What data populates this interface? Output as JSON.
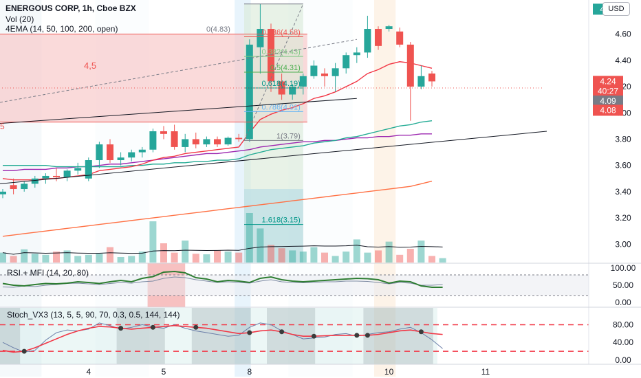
{
  "header": {
    "title": "ENERGOUS CORP, 1h, Cboe BZX",
    "vol_label": "Vol (20)",
    "ema_label": "4EMA (14, 50, 100, 200, open)",
    "currency": "USD"
  },
  "price_axis": {
    "ticks": [
      "4.60",
      "4.40",
      "4.20",
      "4.00",
      "3.80",
      "3.60",
      "3.40",
      "3.20",
      "3.00"
    ],
    "tick_values": [
      4.6,
      4.4,
      4.2,
      4.0,
      3.8,
      3.6,
      3.4,
      3.2,
      3.0
    ],
    "ylim": [
      2.86,
      4.86
    ],
    "labels": [
      {
        "text": "4.79",
        "value": 4.79,
        "color": "#26a69a"
      },
      {
        "text": "4.24",
        "value": 4.24,
        "color": "#ef5350"
      },
      {
        "text": "40:27",
        "value": 4.19,
        "color": "#ef5350"
      },
      {
        "text": "4.09",
        "value": 4.09,
        "color": "#787b86"
      },
      {
        "text": "4.08",
        "value": 4.08,
        "color": "#ef5350"
      }
    ]
  },
  "time_axis": {
    "labels": [
      {
        "text": "4",
        "index": 8
      },
      {
        "text": "5",
        "index": 15
      },
      {
        "text": "8",
        "index": 23
      },
      {
        "text": "10",
        "index": 36
      },
      {
        "text": "11",
        "index": 45
      }
    ]
  },
  "fib": {
    "top_label": "0(4.83)",
    "levels": [
      {
        "label": "0.236(4.58)",
        "value": 4.58,
        "color": "#ef5350"
      },
      {
        "label": "0.382(4.43)",
        "value": 4.43,
        "color": "#81c784"
      },
      {
        "label": "0.5(4.31)",
        "value": 4.31,
        "color": "#4caf50"
      },
      {
        "label": "0.618(4.19)",
        "value": 4.19,
        "color": "#009688"
      },
      {
        "label": "0.786(4.01)",
        "value": 4.01,
        "color": "#64b5f6"
      },
      {
        "label": "1(3.79)",
        "value": 3.79,
        "color": "#787b86"
      },
      {
        "label": "1.618(3.15)",
        "value": 3.15,
        "color": "#009688"
      }
    ]
  },
  "annotations": {
    "box_label": "4,5",
    "side_label": "5"
  },
  "rsi_panel": {
    "title": "RSI + MFI (14, 20, 80)",
    "ticks": [
      "100.00",
      "50.00",
      "0.00"
    ],
    "tick_values": [
      100,
      50,
      0
    ],
    "rsi": [
      55,
      50,
      48,
      52,
      55,
      54,
      56,
      60,
      58,
      55,
      60,
      64,
      60,
      70,
      75,
      88,
      90,
      86,
      72,
      68,
      60,
      64,
      62,
      58,
      70,
      74,
      66,
      62,
      60,
      62,
      64,
      66,
      68,
      70,
      69,
      66,
      56,
      62,
      60,
      48,
      44,
      44
    ],
    "mfi": [
      45,
      44,
      48,
      46,
      50,
      52,
      55,
      56,
      54,
      52,
      55,
      58,
      56,
      60,
      62,
      70,
      74,
      72,
      66,
      62,
      58,
      60,
      58,
      56,
      62,
      66,
      60,
      58,
      57,
      58,
      60,
      60,
      62,
      62,
      61,
      58,
      54,
      58,
      56,
      50,
      50,
      52
    ]
  },
  "stoch_panel": {
    "title": "Stoch_VX3 (13, 5, 5, 90, 70, 0.3, 0.5, 144, 144)",
    "ticks": [
      "80.00",
      "40.00",
      "0.00"
    ],
    "tick_values": [
      80,
      40,
      0
    ],
    "k": [
      22,
      18,
      20,
      28,
      38,
      48,
      58,
      66,
      72,
      76,
      75,
      72,
      70,
      72,
      74,
      76,
      78,
      76,
      74,
      72,
      68,
      64,
      60,
      62,
      66,
      68,
      64,
      58,
      54,
      54,
      55,
      56,
      56,
      56,
      56,
      58,
      62,
      66,
      68,
      64,
      60,
      58
    ],
    "d": [
      40,
      28,
      18,
      22,
      45,
      62,
      68,
      66,
      70,
      84,
      78,
      70,
      74,
      80,
      75,
      72,
      80,
      72,
      66,
      62,
      58,
      54,
      56,
      74,
      84,
      80,
      66,
      58,
      48,
      50,
      52,
      58,
      60,
      54,
      58,
      62,
      64,
      70,
      74,
      62,
      46,
      26
    ]
  },
  "chart_data": {
    "type": "candlestick",
    "title": "ENERGOUS CORP, 1h, Cboe BZX",
    "ylim": [
      2.86,
      4.86
    ],
    "candles": [
      {
        "o": 3.38,
        "h": 3.42,
        "l": 3.35,
        "c": 3.4
      },
      {
        "o": 3.45,
        "h": 3.5,
        "l": 3.38,
        "c": 3.42
      },
      {
        "o": 3.42,
        "h": 3.48,
        "l": 3.4,
        "c": 3.46
      },
      {
        "o": 3.46,
        "h": 3.52,
        "l": 3.43,
        "c": 3.5
      },
      {
        "o": 3.5,
        "h": 3.54,
        "l": 3.46,
        "c": 3.52
      },
      {
        "o": 3.52,
        "h": 3.58,
        "l": 3.48,
        "c": 3.51
      },
      {
        "o": 3.51,
        "h": 3.57,
        "l": 3.48,
        "c": 3.56
      },
      {
        "o": 3.56,
        "h": 3.62,
        "l": 3.53,
        "c": 3.58
      },
      {
        "o": 3.5,
        "h": 3.66,
        "l": 3.48,
        "c": 3.64
      },
      {
        "o": 3.64,
        "h": 3.78,
        "l": 3.58,
        "c": 3.76
      },
      {
        "o": 3.76,
        "h": 3.8,
        "l": 3.62,
        "c": 3.64
      },
      {
        "o": 3.64,
        "h": 3.7,
        "l": 3.6,
        "c": 3.66
      },
      {
        "o": 3.66,
        "h": 3.72,
        "l": 3.63,
        "c": 3.7
      },
      {
        "o": 3.7,
        "h": 3.74,
        "l": 3.66,
        "c": 3.72
      },
      {
        "o": 3.72,
        "h": 3.88,
        "l": 3.7,
        "c": 3.86
      },
      {
        "o": 3.86,
        "h": 3.9,
        "l": 3.8,
        "c": 3.84
      },
      {
        "o": 3.86,
        "h": 3.91,
        "l": 3.72,
        "c": 3.74
      },
      {
        "o": 3.74,
        "h": 3.84,
        "l": 3.7,
        "c": 3.8
      },
      {
        "o": 3.8,
        "h": 3.85,
        "l": 3.73,
        "c": 3.76
      },
      {
        "o": 3.76,
        "h": 3.82,
        "l": 3.74,
        "c": 3.8
      },
      {
        "o": 3.8,
        "h": 3.82,
        "l": 3.74,
        "c": 3.76
      },
      {
        "o": 3.76,
        "h": 3.82,
        "l": 3.75,
        "c": 3.81
      },
      {
        "o": 3.81,
        "h": 3.84,
        "l": 3.78,
        "c": 3.8
      },
      {
        "o": 3.8,
        "h": 4.56,
        "l": 3.78,
        "c": 4.52
      },
      {
        "o": 4.5,
        "h": 4.83,
        "l": 4.3,
        "c": 4.64
      },
      {
        "o": 4.64,
        "h": 4.68,
        "l": 4.16,
        "c": 4.24
      },
      {
        "o": 4.24,
        "h": 4.3,
        "l": 4.1,
        "c": 4.14
      },
      {
        "o": 4.14,
        "h": 4.22,
        "l": 4.1,
        "c": 4.2
      },
      {
        "o": 4.2,
        "h": 4.3,
        "l": 4.14,
        "c": 4.28
      },
      {
        "o": 4.28,
        "h": 4.4,
        "l": 4.26,
        "c": 4.36
      },
      {
        "o": 4.3,
        "h": 4.34,
        "l": 4.2,
        "c": 4.28
      },
      {
        "o": 4.28,
        "h": 4.38,
        "l": 4.16,
        "c": 4.34
      },
      {
        "o": 4.34,
        "h": 4.46,
        "l": 4.3,
        "c": 4.44
      },
      {
        "o": 4.44,
        "h": 4.5,
        "l": 4.38,
        "c": 4.46
      },
      {
        "o": 4.46,
        "h": 4.74,
        "l": 4.42,
        "c": 4.64
      },
      {
        "o": 4.64,
        "h": 4.66,
        "l": 4.48,
        "c": 4.51
      },
      {
        "o": 4.64,
        "h": 4.67,
        "l": 4.62,
        "c": 4.66
      },
      {
        "o": 4.62,
        "h": 4.65,
        "l": 4.5,
        "c": 4.52
      },
      {
        "o": 4.52,
        "h": 4.54,
        "l": 3.94,
        "c": 4.2
      },
      {
        "o": 4.2,
        "h": 4.36,
        "l": 4.18,
        "c": 4.28
      },
      {
        "o": 4.3,
        "h": 4.32,
        "l": 4.2,
        "c": 4.24
      }
    ],
    "volume": [
      18,
      12,
      24,
      16,
      14,
      20,
      22,
      12,
      14,
      16,
      28,
      10,
      12,
      20,
      75,
      35,
      18,
      40,
      16,
      15,
      22,
      20,
      18,
      90,
      62,
      32,
      26,
      22,
      20,
      28,
      18,
      12,
      20,
      42,
      18,
      22,
      38,
      14,
      25,
      40,
      12,
      8
    ],
    "ema14": [
      3.5,
      3.49,
      3.49,
      3.49,
      3.5,
      3.5,
      3.51,
      3.52,
      3.53,
      3.56,
      3.57,
      3.58,
      3.59,
      3.61,
      3.64,
      3.66,
      3.67,
      3.69,
      3.7,
      3.71,
      3.72,
      3.73,
      3.74,
      3.85,
      3.95,
      3.99,
      4.02,
      4.04,
      4.07,
      4.11,
      4.13,
      4.16,
      4.2,
      4.24,
      4.3,
      4.33,
      4.37,
      4.39,
      4.38,
      4.36,
      4.34
    ],
    "ema50": [
      3.6,
      3.6,
      3.6,
      3.6,
      3.6,
      3.59,
      3.59,
      3.59,
      3.59,
      3.59,
      3.59,
      3.59,
      3.6,
      3.6,
      3.61,
      3.61,
      3.62,
      3.62,
      3.63,
      3.63,
      3.64,
      3.64,
      3.65,
      3.68,
      3.7,
      3.72,
      3.73,
      3.74,
      3.75,
      3.77,
      3.78,
      3.79,
      3.81,
      3.82,
      3.84,
      3.86,
      3.88,
      3.9,
      3.91,
      3.93,
      3.94
    ],
    "ema100": [
      3.56,
      3.56,
      3.57,
      3.57,
      3.57,
      3.58,
      3.58,
      3.59,
      3.59,
      3.6,
      3.61,
      3.61,
      3.62,
      3.63,
      3.64,
      3.65,
      3.66,
      3.67,
      3.68,
      3.69,
      3.69,
      3.7,
      3.71,
      3.72,
      3.74,
      3.75,
      3.76,
      3.77,
      3.78,
      3.78,
      3.79,
      3.79,
      3.8,
      3.81,
      3.81,
      3.82,
      3.82,
      3.83,
      3.83,
      3.84,
      3.84
    ],
    "ema200": [
      3.06,
      3.07,
      3.08,
      3.09,
      3.1,
      3.11,
      3.12,
      3.13,
      3.14,
      3.15,
      3.16,
      3.17,
      3.18,
      3.19,
      3.2,
      3.21,
      3.22,
      3.23,
      3.24,
      3.25,
      3.26,
      3.27,
      3.28,
      3.29,
      3.3,
      3.31,
      3.32,
      3.33,
      3.34,
      3.35,
      3.36,
      3.37,
      3.38,
      3.39,
      3.4,
      3.41,
      3.42,
      3.43,
      3.44,
      3.46,
      3.48
    ],
    "colors": {
      "up": "#26a69a",
      "down": "#ef5350",
      "ema14": "#f23645",
      "ema50": "#22ab94",
      "ema100": "#9c27b0",
      "ema200": "#ff7043"
    }
  }
}
